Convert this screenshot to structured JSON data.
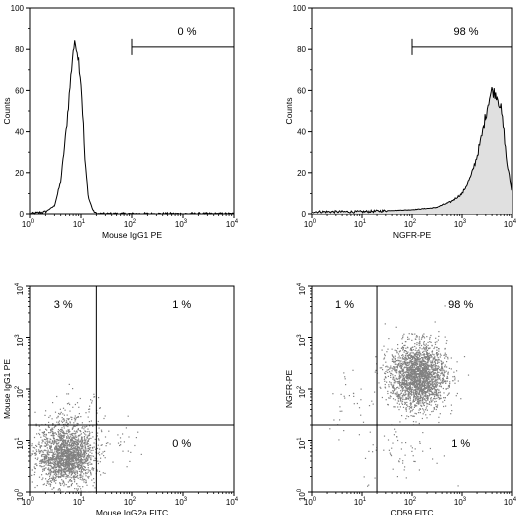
{
  "chart_data": [
    {
      "type": "histogram",
      "xscale": "log",
      "xlim": [
        1,
        10000
      ],
      "ylim": [
        0,
        100
      ],
      "xticks": [
        "10",
        "10",
        "10",
        "10",
        "10"
      ],
      "xtick_exponents": [
        "0",
        "1",
        "2",
        "3",
        "4"
      ],
      "yticks": [
        "0",
        "20",
        "40",
        "60",
        "80",
        "100"
      ],
      "xlabel": "Mouse IgG1 PE",
      "ylabel": "Counts",
      "fill": "none",
      "gate": {
        "x_range": [
          100,
          10000
        ],
        "y": 85,
        "label": "0 %"
      },
      "series": [
        {
          "x": [
            1,
            2,
            3,
            4,
            5,
            6,
            7,
            8,
            9,
            10,
            11,
            12,
            14,
            17,
            20,
            30,
            100,
            1000,
            10000
          ],
          "y": [
            0,
            1,
            4,
            16,
            38,
            60,
            80,
            83,
            75,
            64,
            45,
            25,
            8,
            2,
            0,
            0,
            0,
            0,
            0
          ]
        }
      ]
    },
    {
      "type": "histogram",
      "xscale": "log",
      "xlim": [
        1,
        10000
      ],
      "ylim": [
        0,
        100
      ],
      "xticks": [
        "10",
        "10",
        "10",
        "10",
        "10"
      ],
      "xtick_exponents": [
        "0",
        "1",
        "2",
        "3",
        "4"
      ],
      "yticks": [
        "0",
        "20",
        "40",
        "60",
        "80",
        "100"
      ],
      "xlabel": "NGFR-PE",
      "ylabel": "Counts",
      "fill": "#e0e0e0",
      "gate": {
        "x_range": [
          100,
          10000
        ],
        "y": 85,
        "label": "98 %"
      },
      "series": [
        {
          "x": [
            1,
            10,
            100,
            300,
            600,
            1000,
            1500,
            2000,
            2500,
            3000,
            3500,
            4000,
            5000,
            6000,
            7000,
            8000,
            10000
          ],
          "y": [
            1,
            1,
            2,
            3,
            6,
            10,
            18,
            28,
            38,
            48,
            56,
            60,
            58,
            52,
            40,
            25,
            12
          ]
        }
      ]
    },
    {
      "type": "scatter",
      "xscale": "log",
      "yscale": "log",
      "xlim": [
        1,
        10000
      ],
      "ylim": [
        1,
        10000
      ],
      "xticks": [
        "10",
        "10",
        "10",
        "10",
        "10"
      ],
      "xtick_exponents": [
        "0",
        "1",
        "2",
        "3",
        "4"
      ],
      "yticks": [
        "10",
        "10",
        "10",
        "10",
        "10"
      ],
      "ytick_exponents": [
        "0",
        "1",
        "2",
        "3",
        "4"
      ],
      "xlabel": "Mouse IgG2a FITC",
      "ylabel": "Mouse IgG1 PE",
      "quadrant": {
        "x": 20,
        "y": 20
      },
      "quadrant_labels": {
        "upper_left": "3 %",
        "upper_right": "1 %",
        "lower_right": "0 %",
        "lower_left": ""
      },
      "point_color": "#808080",
      "clusters": [
        {
          "center": [
            5,
            5
          ],
          "spread_log10": [
            0.28,
            0.28
          ],
          "count": 1900
        },
        {
          "center": [
            7,
            25
          ],
          "spread_log10": [
            0.3,
            0.25
          ],
          "count": 120
        },
        {
          "center": [
            60,
            8
          ],
          "spread_log10": [
            0.3,
            0.2
          ],
          "count": 25
        }
      ]
    },
    {
      "type": "scatter",
      "xscale": "log",
      "yscale": "log",
      "xlim": [
        1,
        10000
      ],
      "ylim": [
        1,
        10000
      ],
      "xticks": [
        "10",
        "10",
        "10",
        "10",
        "10"
      ],
      "xtick_exponents": [
        "0",
        "1",
        "2",
        "3",
        "4"
      ],
      "yticks": [
        "10",
        "10",
        "10",
        "10",
        "10"
      ],
      "ytick_exponents": [
        "0",
        "1",
        "2",
        "3",
        "4"
      ],
      "xlabel": "CD59 FITC",
      "ylabel": "NGFR-PE",
      "quadrant": {
        "x": 20,
        "y": 20
      },
      "quadrant_labels": {
        "upper_left": "1 %",
        "upper_right": "98 %",
        "lower_right": "1 %",
        "lower_left": ""
      },
      "point_color": "#808080",
      "clusters": [
        {
          "center": [
            130,
            180
          ],
          "spread_log10": [
            0.28,
            0.32
          ],
          "count": 2200
        },
        {
          "center": [
            60,
            6
          ],
          "spread_log10": [
            0.4,
            0.3
          ],
          "count": 60
        },
        {
          "center": [
            6,
            60
          ],
          "spread_log10": [
            0.25,
            0.35
          ],
          "count": 30
        }
      ]
    }
  ]
}
